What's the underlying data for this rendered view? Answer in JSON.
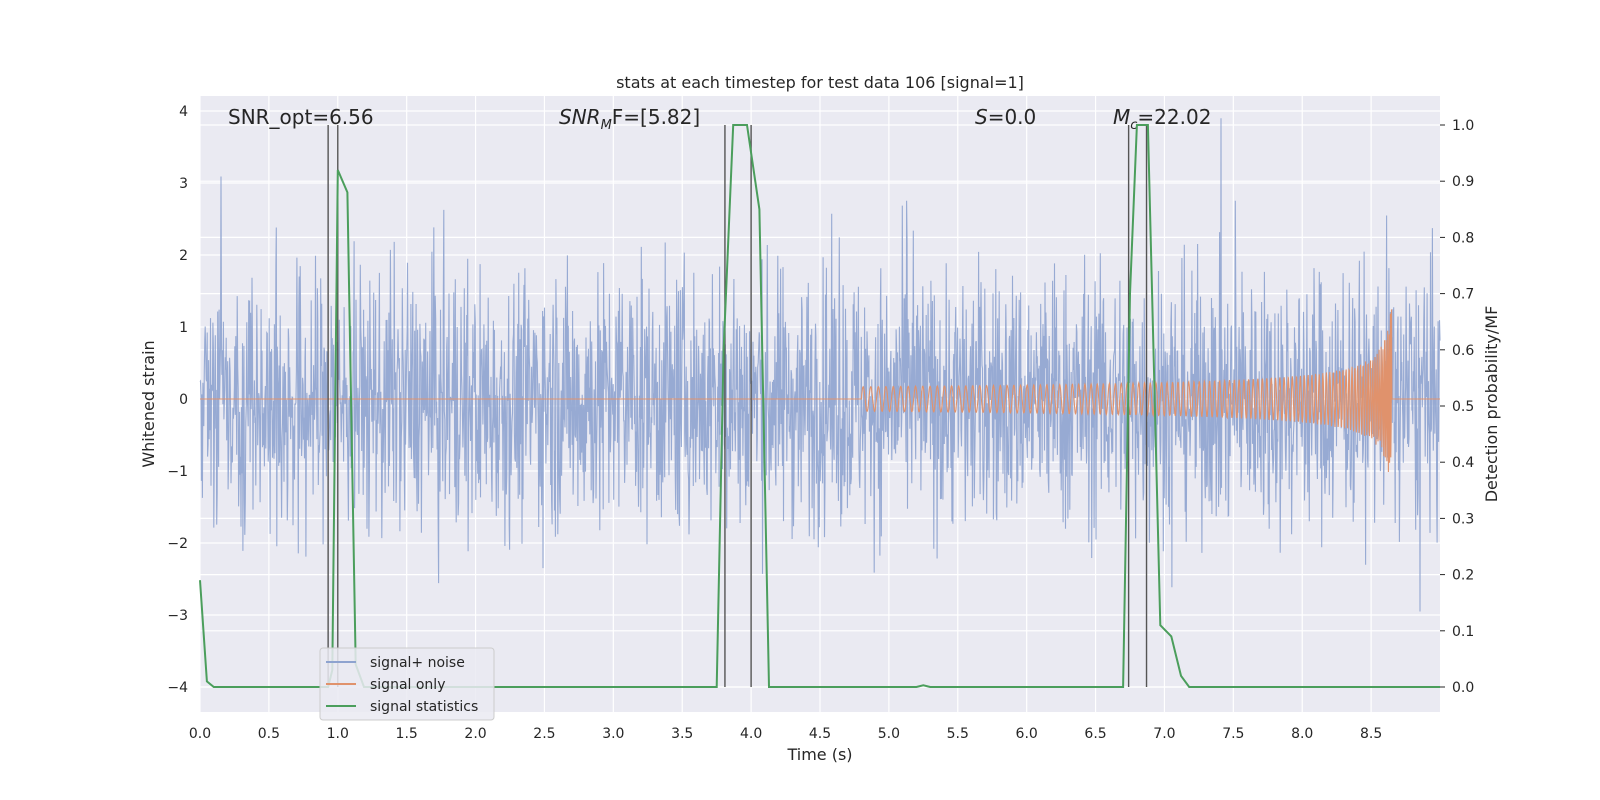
{
  "chart_data": {
    "type": "line",
    "title": "stats at each timestep for test data 106 [signal=1]",
    "xlabel": "Time (s)",
    "ylabel": "Whitened strain",
    "y2label": "Detection probability/MF",
    "xlim": [
      0.0,
      9.0
    ],
    "ylim": [
      -4.4,
      4.2
    ],
    "y2lim": [
      -0.05,
      1.04
    ],
    "x_ticks": [
      "0.0",
      "0.5",
      "1.0",
      "1.5",
      "2.0",
      "2.5",
      "3.0",
      "3.5",
      "4.0",
      "4.5",
      "5.0",
      "5.5",
      "6.0",
      "6.5",
      "7.0",
      "7.5",
      "8.0",
      "8.5"
    ],
    "y_ticks": [
      "4",
      "3",
      "2",
      "1",
      "0",
      "−1",
      "−2",
      "−3",
      "−4"
    ],
    "y2_ticks": [
      "1.0",
      "0.9",
      "0.8",
      "0.7",
      "0.6",
      "0.5",
      "0.4",
      "0.3",
      "0.2",
      "0.1",
      "0.0"
    ],
    "grid": true,
    "legend_position": "lower-left",
    "annotations": {
      "snr_opt": "SNR_opt=6.56",
      "snr_mf_main": "SNR",
      "snr_mf_sub": "M",
      "snr_mf_rest": "F=[5.82]",
      "s_main": "S",
      "s_rest": "=0.0",
      "mc_main": "M",
      "mc_sub": "c",
      "mc_rest": "=22.02"
    },
    "series": [
      {
        "name": "signal+ noise",
        "color": "#8ea3cf",
        "description_values": "noise band amplitude ~±2.5 with spikes to ±3.5"
      },
      {
        "name": "signal only",
        "color": "#e0926c",
        "chirp_start": 4.8,
        "chirp_end": 8.65,
        "peak_amplitude": 1.4
      },
      {
        "name": "signal statistics",
        "color": "#4b9e5c",
        "x": [
          0.0,
          0.05,
          0.1,
          0.15,
          0.93,
          0.96,
          1.0,
          1.07,
          1.13,
          1.19,
          3.75,
          3.8,
          3.87,
          3.97,
          4.06,
          4.13,
          4.2,
          5.2,
          5.25,
          5.3,
          6.7,
          6.75,
          6.8,
          6.88,
          6.97,
          7.05,
          7.12,
          7.18,
          7.25,
          7.35,
          9.0
        ],
        "y": [
          0.19,
          0.01,
          0.0,
          0.0,
          0.0,
          0.03,
          0.92,
          0.88,
          0.04,
          0.0,
          0.0,
          0.6,
          1.0,
          1.0,
          0.85,
          0.0,
          0.0,
          0.0,
          0.003,
          0.0,
          0.0,
          0.7,
          1.0,
          1.0,
          0.11,
          0.09,
          0.02,
          0.0,
          0.0,
          0.0,
          0.0
        ]
      }
    ],
    "vertical_lines": [
      0.93,
      1.0,
      3.81,
      4.0,
      6.74,
      6.87
    ]
  },
  "legend": [
    {
      "label": "signal+ noise",
      "color": "#8ea3cf"
    },
    {
      "label": "signal only",
      "color": "#e0926c"
    },
    {
      "label": "signal statistics",
      "color": "#4b9e5c"
    }
  ]
}
